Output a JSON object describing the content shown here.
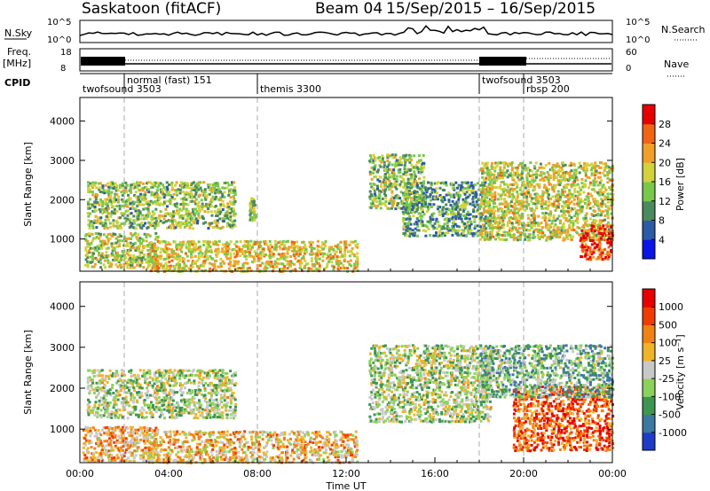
{
  "header": {
    "title": "Saskatoon (fitACF)",
    "beam": "Beam 04",
    "date_range": "15/Sep/2015 – 16/Sep/2015"
  },
  "top_panels": {
    "nsky_label": "N.Sky",
    "nsearch_label": "N.Search",
    "freq_label": "Freq.",
    "freq_unit": "[MHz]",
    "nave_label": "Nave",
    "cpid_label": "CPID",
    "noise_ticks_left": [
      "10^5",
      "10^0"
    ],
    "noise_ticks_right": [
      "10^5",
      "10^0"
    ],
    "freq_ticks": [
      "18",
      "8"
    ],
    "nave_ticks": [
      "60",
      "0"
    ],
    "cpid_segments": [
      {
        "label": "twofsound 3503",
        "start_h": 0
      },
      {
        "label": "normal (fast) 151",
        "start_h": 2
      },
      {
        "label": "themis 3300",
        "start_h": 8
      },
      {
        "label": "twofsound 3503",
        "start_h": 18
      },
      {
        "label": "rbsp 200",
        "start_h": 20
      }
    ]
  },
  "chart_data": [
    {
      "type": "heatmap",
      "parameter": "Power",
      "xlabel": "",
      "ylabel": "Slant Range [km]",
      "xlim_hours": [
        0,
        24
      ],
      "ylim": [
        180,
        4600
      ],
      "y_ticks": [
        1000,
        2000,
        3000,
        4000
      ],
      "colorbar": {
        "label": "Power [dB]",
        "ticks": [
          "4",
          "8",
          "12",
          "16",
          "20",
          "24",
          "28"
        ],
        "colors": [
          "#0a14e6",
          "#2c5aa6",
          "#4b8a5c",
          "#78c84a",
          "#d2d23c",
          "#f0a028",
          "#f06414",
          "#e60000"
        ]
      },
      "scatter_regions": [
        {
          "t0": 0.3,
          "t1": 7.0,
          "r0": 1300,
          "r1": 2500,
          "level": 0.45
        },
        {
          "t0": 0.2,
          "t1": 3.5,
          "r0": 300,
          "r1": 1200,
          "level": 0.5
        },
        {
          "t0": 3.0,
          "t1": 12.5,
          "r0": 200,
          "r1": 1000,
          "level": 0.6
        },
        {
          "t0": 7.6,
          "t1": 7.9,
          "r0": 1500,
          "r1": 2100,
          "level": 0.45
        },
        {
          "t0": 13.0,
          "t1": 15.5,
          "r0": 1800,
          "r1": 3200,
          "level": 0.45
        },
        {
          "t0": 14.5,
          "t1": 18.5,
          "r0": 1100,
          "r1": 2500,
          "level": 0.35
        },
        {
          "t0": 18.0,
          "t1": 24.0,
          "r0": 1000,
          "r1": 3000,
          "level": 0.55
        },
        {
          "t0": 22.5,
          "t1": 24.0,
          "r0": 500,
          "r1": 1400,
          "level": 0.9
        }
      ]
    },
    {
      "type": "heatmap",
      "parameter": "Velocity",
      "xlabel": "Time UT",
      "ylabel": "Slant Range [km]",
      "xlim_hours": [
        0,
        24
      ],
      "ylim": [
        180,
        4600
      ],
      "y_ticks": [
        1000,
        2000,
        3000,
        4000
      ],
      "x_tick_labels": [
        "00:00",
        "04:00",
        "08:00",
        "12:00",
        "16:00",
        "20:00",
        "00:00"
      ],
      "colorbar": {
        "label": "Velocity [m s⁻¹]",
        "ticks": [
          "1000",
          "500",
          "100",
          "25",
          "-25",
          "-100",
          "-500",
          "-1000"
        ],
        "colors": [
          "#1e3cc8",
          "#3c78a0",
          "#3c9650",
          "#8cd25a",
          "#c8c8c8",
          "#f0b428",
          "#f08214",
          "#f03c00",
          "#e60000"
        ]
      },
      "scatter_regions": [
        {
          "t0": 0.3,
          "t1": 7.0,
          "r0": 1300,
          "r1": 2500,
          "level": 0.45
        },
        {
          "t0": 0.1,
          "t1": 3.5,
          "r0": 250,
          "r1": 1100,
          "level": 0.65
        },
        {
          "t0": 3.0,
          "t1": 12.5,
          "r0": 200,
          "r1": 1000,
          "level": 0.6
        },
        {
          "t0": 13.0,
          "t1": 18.5,
          "r0": 1200,
          "r1": 3100,
          "level": 0.45
        },
        {
          "t0": 19.5,
          "t1": 24.0,
          "r0": 500,
          "r1": 2100,
          "level": 0.8
        },
        {
          "t0": 18.0,
          "t1": 24.0,
          "r0": 1800,
          "r1": 3100,
          "level": 0.35
        }
      ]
    }
  ]
}
